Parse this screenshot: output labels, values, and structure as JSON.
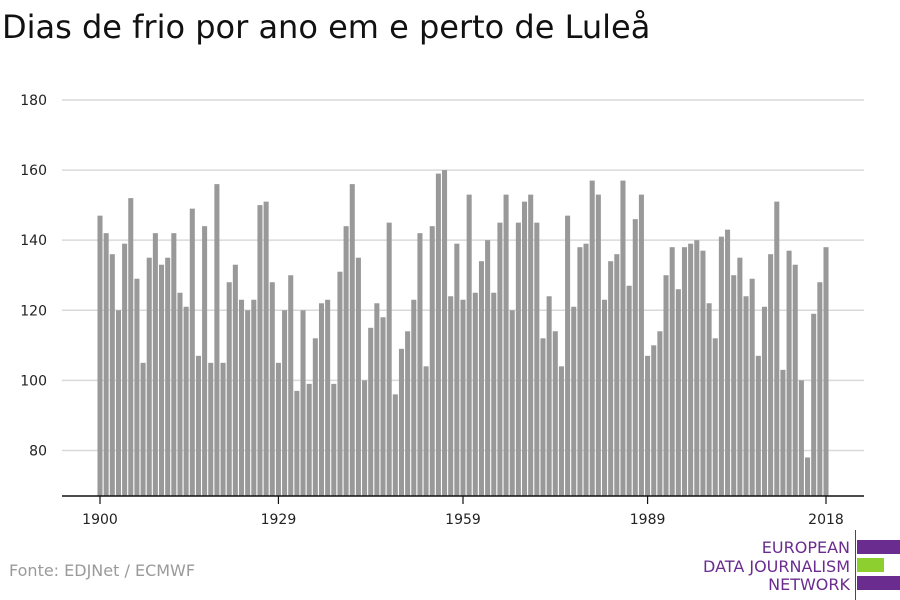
{
  "title": "Dias de frio por ano em e perto de Luleå",
  "source": "Fonte: EDJNet / ECMWF",
  "logo": {
    "line1": "EUROPEAN",
    "line2": "DATA JOURNALISM",
    "line3": "NETWORK",
    "colors": [
      "#6b2c8f",
      "#8ccf2e",
      "#6b2c8f"
    ]
  },
  "chart_data": {
    "type": "bar",
    "title": "Dias de frio por ano em e perto de Luleå",
    "xlabel": "",
    "ylabel": "",
    "x": [
      1900,
      1901,
      1902,
      1903,
      1904,
      1905,
      1906,
      1907,
      1908,
      1909,
      1910,
      1911,
      1912,
      1913,
      1914,
      1915,
      1916,
      1917,
      1918,
      1919,
      1920,
      1921,
      1922,
      1923,
      1924,
      1925,
      1926,
      1927,
      1928,
      1929,
      1930,
      1931,
      1932,
      1933,
      1934,
      1935,
      1936,
      1937,
      1938,
      1939,
      1940,
      1941,
      1942,
      1943,
      1944,
      1945,
      1946,
      1947,
      1948,
      1949,
      1950,
      1951,
      1952,
      1953,
      1954,
      1955,
      1956,
      1957,
      1958,
      1959,
      1960,
      1961,
      1962,
      1963,
      1964,
      1965,
      1966,
      1967,
      1968,
      1969,
      1970,
      1971,
      1972,
      1973,
      1974,
      1975,
      1976,
      1977,
      1978,
      1979,
      1980,
      1981,
      1982,
      1983,
      1984,
      1985,
      1986,
      1987,
      1988,
      1989,
      1990,
      1991,
      1992,
      1993,
      1994,
      1995,
      1996,
      1997,
      1998,
      1999,
      2000,
      2001,
      2002,
      2003,
      2004,
      2005,
      2006,
      2007,
      2008,
      2009,
      2010,
      2011,
      2012,
      2013,
      2014,
      2015,
      2016,
      2017,
      2018
    ],
    "values": [
      147,
      142,
      136,
      120,
      139,
      152,
      129,
      105,
      135,
      142,
      133,
      135,
      142,
      125,
      121,
      149,
      107,
      144,
      105,
      156,
      105,
      128,
      133,
      123,
      120,
      123,
      150,
      151,
      128,
      105,
      120,
      130,
      97,
      120,
      99,
      112,
      122,
      123,
      99,
      131,
      144,
      156,
      135,
      100,
      115,
      122,
      118,
      145,
      96,
      109,
      114,
      123,
      142,
      104,
      144,
      159,
      160,
      124,
      139,
      123,
      153,
      125,
      134,
      140,
      125,
      145,
      153,
      120,
      145,
      151,
      153,
      145,
      112,
      124,
      114,
      104,
      147,
      121,
      138,
      139,
      157,
      153,
      123,
      134,
      136,
      157,
      127,
      146,
      153,
      107,
      110,
      114,
      130,
      138,
      126,
      138,
      139,
      140,
      137,
      122,
      112,
      141,
      143,
      130,
      135,
      124,
      129,
      107,
      121,
      136,
      151,
      103,
      137,
      133,
      100,
      78,
      119,
      128,
      138
    ],
    "xticks": [
      "1900",
      "1929",
      "1959",
      "1989",
      "2018"
    ],
    "yticks": [
      "80",
      "100",
      "120",
      "140",
      "160",
      "180"
    ],
    "ylim": [
      67,
      180
    ],
    "bar_color": "#999999",
    "grid": true,
    "legend": "none"
  }
}
